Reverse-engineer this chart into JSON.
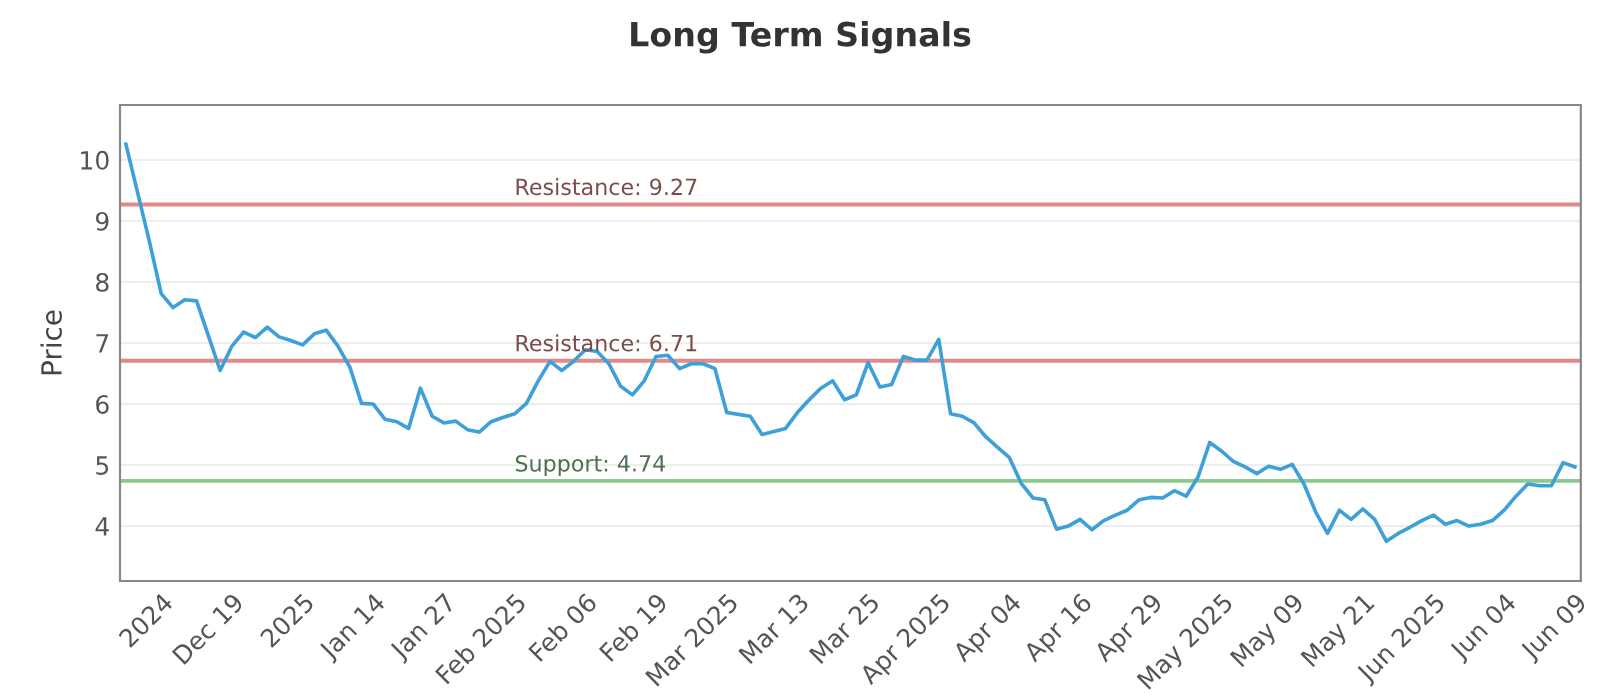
{
  "chart_data": {
    "type": "line",
    "title": "Long Term Signals",
    "ylabel": "Price",
    "categories": [
      null,
      null,
      null,
      "2024",
      null,
      null,
      null,
      null,
      null,
      "Dec 19",
      null,
      null,
      null,
      null,
      null,
      "2025",
      null,
      null,
      null,
      null,
      null,
      "Jan 14",
      null,
      null,
      null,
      null,
      null,
      "Jan 27",
      null,
      null,
      null,
      null,
      null,
      "Feb 2025",
      null,
      null,
      null,
      null,
      null,
      "Feb 06",
      null,
      null,
      null,
      null,
      null,
      "Feb 19",
      null,
      null,
      null,
      null,
      null,
      "Mar 2025",
      null,
      null,
      null,
      null,
      null,
      "Mar 13",
      null,
      null,
      null,
      null,
      null,
      "Mar 25",
      null,
      null,
      null,
      null,
      null,
      "Apr 2025",
      null,
      null,
      null,
      null,
      null,
      "Apr 04",
      null,
      null,
      null,
      null,
      null,
      "Apr 16",
      null,
      null,
      null,
      null,
      null,
      "Apr 29",
      null,
      null,
      null,
      null,
      null,
      "May 2025",
      null,
      null,
      null,
      null,
      null,
      "May 09",
      null,
      null,
      null,
      null,
      null,
      "May 21",
      null,
      null,
      null,
      null,
      null,
      "Jun 2025",
      null,
      null,
      null,
      null,
      null,
      "Jun 04",
      null,
      null,
      null,
      null,
      null,
      "Jun 09"
    ],
    "series": [
      {
        "color": "#3ea0d8",
        "values": [
          10.26,
          9.46,
          8.66,
          7.81,
          7.58,
          7.71,
          7.69,
          7.12,
          6.55,
          6.95,
          7.18,
          7.09,
          7.26,
          7.1,
          7.04,
          6.97,
          7.15,
          7.21,
          6.95,
          6.61,
          6.01,
          6.0,
          5.75,
          5.71,
          5.6,
          6.26,
          5.8,
          5.69,
          5.72,
          5.58,
          5.54,
          5.71,
          5.78,
          5.84,
          6.01,
          6.38,
          6.7,
          6.55,
          6.7,
          6.89,
          6.86,
          6.66,
          6.29,
          6.15,
          6.38,
          6.78,
          6.8,
          6.58,
          6.66,
          6.66,
          6.58,
          5.86,
          5.83,
          5.8,
          5.5,
          5.55,
          5.6,
          5.86,
          6.07,
          6.26,
          6.38,
          6.07,
          6.15,
          6.68,
          6.28,
          6.32,
          6.78,
          6.72,
          6.72,
          7.06,
          5.84,
          5.8,
          5.69,
          5.46,
          5.29,
          5.12,
          4.7,
          4.46,
          4.43,
          3.95,
          4.0,
          4.11,
          3.94,
          4.09,
          4.18,
          4.26,
          4.43,
          4.47,
          4.46,
          4.58,
          4.49,
          4.8,
          5.37,
          5.23,
          5.06,
          4.97,
          4.86,
          4.98,
          4.93,
          5.01,
          4.69,
          4.23,
          3.88,
          4.26,
          4.11,
          4.28,
          4.11,
          3.75,
          3.88,
          3.98,
          4.09,
          4.18,
          4.03,
          4.09,
          4.0,
          4.03,
          4.09,
          4.26,
          4.49,
          4.69,
          4.66,
          4.66,
          5.04,
          4.97
        ]
      }
    ],
    "ylim": [
      3.1,
      10.9
    ],
    "yticks": [
      4,
      5,
      6,
      7,
      8,
      9,
      10
    ],
    "grid": "y",
    "ref_lines": [
      {
        "axis": "y",
        "value": 9.27,
        "label": "Resistance: 9.27",
        "color": "#e08a8a"
      },
      {
        "axis": "y",
        "value": 6.71,
        "label": "Resistance: 6.71",
        "color": "#e08a8a"
      },
      {
        "axis": "y",
        "value": 4.74,
        "label": "Support: 4.74",
        "color": "#8cc98c"
      }
    ]
  }
}
